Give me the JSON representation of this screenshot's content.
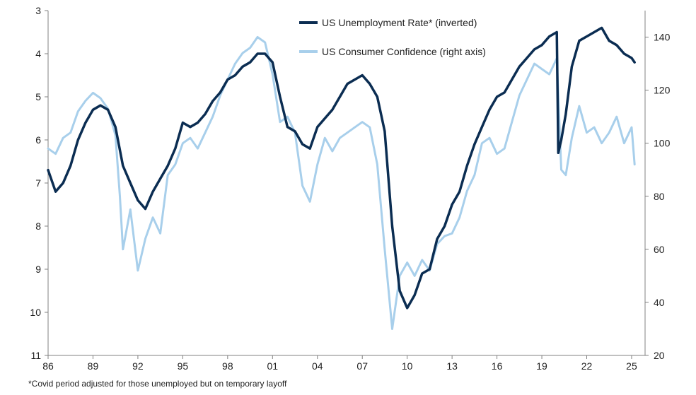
{
  "chart_data": {
    "type": "line",
    "title": "",
    "xlabel": "",
    "ylabel": "",
    "y2label": "",
    "x_tick_labels": [
      "86",
      "89",
      "92",
      "95",
      "98",
      "01",
      "04",
      "07",
      "10",
      "13",
      "16",
      "19",
      "22",
      "25"
    ],
    "xlim": [
      1986.0,
      2025.9
    ],
    "ylim_left": [
      11,
      3
    ],
    "ylim_left_inverted": true,
    "ylim_right": [
      20,
      150
    ],
    "y_left_ticks": [
      3,
      4,
      5,
      6,
      7,
      8,
      9,
      10,
      11
    ],
    "y_right_ticks": [
      20,
      40,
      60,
      80,
      100,
      120,
      140
    ],
    "grid": false,
    "legend_position": "top-center",
    "series": [
      {
        "name": "US Unemployment Rate* (inverted)",
        "axis": "left",
        "color": "#0b2d52",
        "x": [
          1986.0,
          1986.5,
          1987.0,
          1987.5,
          1988.0,
          1988.5,
          1989.0,
          1989.5,
          1990.0,
          1990.5,
          1991.0,
          1991.5,
          1992.0,
          1992.5,
          1993.0,
          1993.5,
          1994.0,
          1994.5,
          1995.0,
          1995.5,
          1996.0,
          1996.5,
          1997.0,
          1997.5,
          1998.0,
          1998.5,
          1999.0,
          1999.5,
          2000.0,
          2000.5,
          2001.0,
          2001.5,
          2002.0,
          2002.5,
          2003.0,
          2003.5,
          2004.0,
          2004.5,
          2005.0,
          2005.5,
          2006.0,
          2006.5,
          2007.0,
          2007.5,
          2008.0,
          2008.5,
          2009.0,
          2009.5,
          2010.0,
          2010.5,
          2011.0,
          2011.5,
          2012.0,
          2012.5,
          2013.0,
          2013.5,
          2014.0,
          2014.5,
          2015.0,
          2015.5,
          2016.0,
          2016.5,
          2017.0,
          2017.5,
          2018.0,
          2018.5,
          2019.0,
          2019.5,
          2020.0,
          2020.1,
          2020.3,
          2020.6,
          2021.0,
          2021.5,
          2022.0,
          2022.5,
          2023.0,
          2023.5,
          2024.0,
          2024.5,
          2025.0,
          2025.2
        ],
        "values": [
          6.7,
          7.2,
          7.0,
          6.6,
          6.0,
          5.6,
          5.3,
          5.2,
          5.3,
          5.7,
          6.6,
          7.0,
          7.4,
          7.6,
          7.2,
          6.9,
          6.6,
          6.2,
          5.6,
          5.7,
          5.6,
          5.4,
          5.1,
          4.9,
          4.6,
          4.5,
          4.3,
          4.2,
          4.0,
          4.0,
          4.2,
          5.0,
          5.7,
          5.8,
          6.1,
          6.2,
          5.7,
          5.5,
          5.3,
          5.0,
          4.7,
          4.6,
          4.5,
          4.7,
          5.0,
          5.8,
          8.0,
          9.5,
          9.9,
          9.6,
          9.1,
          9.0,
          8.3,
          8.0,
          7.5,
          7.2,
          6.6,
          6.1,
          5.7,
          5.3,
          5.0,
          4.9,
          4.6,
          4.3,
          4.1,
          3.9,
          3.8,
          3.6,
          3.5,
          6.3,
          6.0,
          5.4,
          4.3,
          3.7,
          3.6,
          3.5,
          3.4,
          3.7,
          3.8,
          4.0,
          4.1,
          4.2
        ]
      },
      {
        "name": "US Consumer Confidence (right axis)",
        "axis": "right",
        "color": "#a8cfeb",
        "x": [
          1986.0,
          1986.5,
          1987.0,
          1987.5,
          1988.0,
          1988.5,
          1989.0,
          1989.5,
          1990.0,
          1990.5,
          1990.8,
          1991.0,
          1991.5,
          1992.0,
          1992.5,
          1993.0,
          1993.5,
          1994.0,
          1994.5,
          1995.0,
          1995.5,
          1996.0,
          1996.5,
          1997.0,
          1997.5,
          1998.0,
          1998.5,
          1999.0,
          1999.5,
          2000.0,
          2000.5,
          2001.0,
          2001.5,
          2002.0,
          2002.5,
          2003.0,
          2003.5,
          2004.0,
          2004.5,
          2005.0,
          2005.5,
          2006.0,
          2006.5,
          2007.0,
          2007.5,
          2008.0,
          2008.5,
          2009.0,
          2009.5,
          2010.0,
          2010.5,
          2011.0,
          2011.5,
          2012.0,
          2012.5,
          2013.0,
          2013.5,
          2014.0,
          2014.5,
          2015.0,
          2015.5,
          2016.0,
          2016.5,
          2017.0,
          2017.5,
          2018.0,
          2018.5,
          2019.0,
          2019.5,
          2020.0,
          2020.3,
          2020.6,
          2021.0,
          2021.5,
          2022.0,
          2022.5,
          2023.0,
          2023.5,
          2024.0,
          2024.5,
          2025.0,
          2025.2
        ],
        "values": [
          98,
          96,
          102,
          104,
          112,
          116,
          119,
          117,
          113,
          103,
          80,
          60,
          75,
          52,
          64,
          72,
          66,
          88,
          92,
          100,
          102,
          98,
          104,
          110,
          118,
          124,
          130,
          134,
          136,
          140,
          138,
          126,
          108,
          110,
          104,
          84,
          78,
          92,
          102,
          97,
          102,
          104,
          106,
          108,
          106,
          92,
          60,
          30,
          50,
          55,
          50,
          56,
          52,
          62,
          65,
          66,
          72,
          82,
          88,
          100,
          102,
          96,
          98,
          108,
          118,
          124,
          130,
          128,
          126,
          132,
          90,
          88,
          102,
          114,
          104,
          106,
          100,
          104,
          110,
          100,
          106,
          92
        ]
      }
    ]
  },
  "legend": {
    "items": [
      {
        "label": "US Unemployment Rate* (inverted)",
        "color": "#0b2d52"
      },
      {
        "label": "US Consumer Confidence (right axis)",
        "color": "#a8cfeb"
      }
    ]
  },
  "footnote": "*Covid period adjusted for those unemployed but on temporary layoff"
}
